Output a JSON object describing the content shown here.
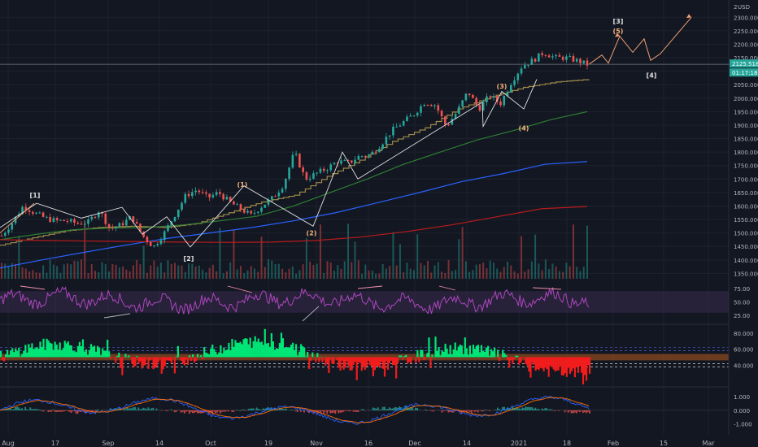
{
  "app": {
    "currency": "USD",
    "price_badge": "2125.518",
    "time_badge": "01:17:18",
    "colors": {
      "background": "#131722",
      "grid": "#1e222d",
      "text": "#b2b5be",
      "candle_up": "#26a69a",
      "candle_down": "#ef5350",
      "badge": "#26a69a",
      "price_line": "#787b86",
      "ma_fast": "#a08a4a",
      "ma_green": "#2e7d32",
      "ma_blue": "#2962ff",
      "ma_red": "#b71c1c",
      "rsi": "#ab47bc",
      "rsi_band": "#3a2a4e",
      "osc_up": "#00e676",
      "osc_down": "#f21c1c",
      "osc_band": "#8a4a20",
      "macd": "#2962ff",
      "signal": "#ff6d00",
      "wave": "#e0e0e0",
      "wave_sub": "#f0b27a",
      "projection": "#f0a070",
      "divergence": "#f48fb1"
    }
  },
  "chart_data": [
    {
      "type": "line",
      "name": "price",
      "x_axis_labels": [
        "Aug",
        "17",
        "Sep",
        "14",
        "Oct",
        "19",
        "Nov",
        "16",
        "Dec",
        "14",
        "2021",
        "18",
        "Feb",
        "15",
        "Mar"
      ],
      "y_ticks": [
        1350,
        1400,
        1450,
        1500,
        1550,
        1600,
        1650,
        1700,
        1750,
        1800,
        1850,
        1900,
        1950,
        2000,
        2050,
        2100,
        2150,
        2200,
        2250,
        2300
      ],
      "y_tick_labels": [
        "1350.000",
        "1400.000",
        "1450.000",
        "1500.000",
        "1550.000",
        "1600.000",
        "1650.000",
        "1700.000",
        "1750.000",
        "1800.000",
        "1850.000",
        "1900.000",
        "1950.000",
        "2000.000",
        "2050.000",
        "2100.000",
        "2150.000",
        "2200.000",
        "2250.000",
        "2300.000"
      ],
      "axis_top_label": "2",
      "ylim": [
        1330,
        2340
      ],
      "last_price": 2125.518,
      "close_series": [
        1490,
        1540,
        1600,
        1575,
        1555,
        1545,
        1545,
        1535,
        1540,
        1585,
        1515,
        1530,
        1560,
        1490,
        1448,
        1500,
        1570,
        1640,
        1660,
        1630,
        1650,
        1615,
        1590,
        1565,
        1600,
        1630,
        1680,
        1800,
        1700,
        1720,
        1740,
        1765,
        1760,
        1785,
        1790,
        1830,
        1880,
        1910,
        1940,
        1985,
        1975,
        1895,
        1950,
        2025,
        1960,
        2010,
        1980,
        2060,
        2120,
        2140,
        2170,
        2150,
        2150,
        2140,
        2125
      ],
      "moving_averages": [
        {
          "color": "ma_fast",
          "values": [
            1455,
            1482,
            1508,
            1520,
            1525,
            1520,
            1535,
            1575,
            1615,
            1640,
            1710,
            1770,
            1840,
            1890,
            1960,
            2005,
            2040,
            2060,
            2070
          ]
        },
        {
          "color": "ma_green",
          "values": [
            1475,
            1495,
            1512,
            1518,
            1520,
            1530,
            1545,
            1562,
            1600,
            1650,
            1700,
            1755,
            1800,
            1845,
            1880,
            1920,
            1950
          ]
        },
        {
          "color": "ma_blue",
          "values": [
            1370,
            1400,
            1428,
            1455,
            1480,
            1500,
            1520,
            1545,
            1575,
            1612,
            1650,
            1690,
            1720,
            1755,
            1765
          ]
        },
        {
          "color": "ma_red",
          "values": [
            1475,
            1472,
            1470,
            1468,
            1466,
            1465,
            1466,
            1472,
            1485,
            1505,
            1530,
            1560,
            1590,
            1598
          ]
        }
      ],
      "wave_labels": [
        {
          "label": "[1]",
          "y": 1640,
          "color": "wave"
        },
        {
          "label": "[2]",
          "y": 1405,
          "color": "wave"
        },
        {
          "label": "(1)",
          "y": 1680,
          "color": "wave_sub"
        },
        {
          "label": "(2)",
          "y": 1500,
          "color": "wave_sub"
        },
        {
          "label": "(3)",
          "y": 2045,
          "color": "wave_sub"
        },
        {
          "label": "(4)",
          "y": 1890,
          "color": "wave_sub"
        },
        {
          "label": "(5)",
          "y": 2250,
          "color": "wave_sub"
        },
        {
          "label": "[3]",
          "y": 2285,
          "color": "wave"
        },
        {
          "label": "[4]",
          "y": 2085,
          "color": "wave"
        }
      ],
      "projection_path": [
        2125,
        2160,
        2130,
        2230,
        2170,
        2220,
        2140,
        2165,
        2300
      ]
    },
    {
      "type": "line",
      "name": "RSI",
      "y_tick_labels": [
        "75.00",
        "50.00",
        "25.00"
      ],
      "y_ticks": [
        75,
        50,
        25
      ],
      "band": [
        30,
        70
      ],
      "ylim": [
        10,
        90
      ],
      "last_value": 40
    },
    {
      "type": "area",
      "name": "oscillator",
      "y_tick_labels": [
        "80.000",
        "60.000",
        "40.000"
      ],
      "y_ticks": [
        80,
        60,
        40
      ],
      "midline": 50,
      "band": [
        46,
        54
      ],
      "ylim": [
        15,
        90
      ]
    },
    {
      "type": "line",
      "name": "MACD",
      "y_tick_labels": [
        "1.000",
        "0.000",
        "-1.000"
      ],
      "y_ticks": [
        1,
        0,
        -1
      ],
      "ylim": [
        -1.5,
        1.6
      ]
    }
  ]
}
